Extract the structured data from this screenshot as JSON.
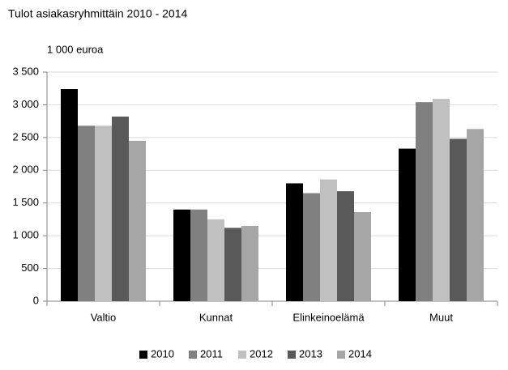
{
  "chart_data": {
    "type": "bar",
    "title": "Tulot asiakasryhmittäin 2010 - 2014",
    "y_label": "1 000 euroa",
    "categories": [
      "Valtio",
      "Kunnat",
      "Elinkeinoelämä",
      "Muut"
    ],
    "series": [
      {
        "name": "2010",
        "color": "#000000",
        "values": [
          3240,
          1400,
          1800,
          2330
        ]
      },
      {
        "name": "2011",
        "color": "#808080",
        "values": [
          2680,
          1400,
          1650,
          3040
        ]
      },
      {
        "name": "2012",
        "color": "#c0c0c0",
        "values": [
          2680,
          1250,
          1860,
          3090
        ]
      },
      {
        "name": "2013",
        "color": "#595959",
        "values": [
          2820,
          1120,
          1680,
          2480
        ]
      },
      {
        "name": "2014",
        "color": "#a6a6a6",
        "values": [
          2450,
          1150,
          1360,
          2630
        ]
      }
    ],
    "ylim": [
      0,
      3500
    ],
    "yticks": [
      0,
      500,
      {
        "value": 1000,
        "label": "1 000"
      },
      {
        "value": 1500,
        "label": "1 500"
      },
      {
        "value": 2000,
        "label": "2 000"
      },
      {
        "value": 2500,
        "label": "2 500"
      },
      {
        "value": 3000,
        "label": "3 000"
      },
      {
        "value": 3500,
        "label": "3 500"
      }
    ],
    "grid": true,
    "legend": "bottom"
  }
}
